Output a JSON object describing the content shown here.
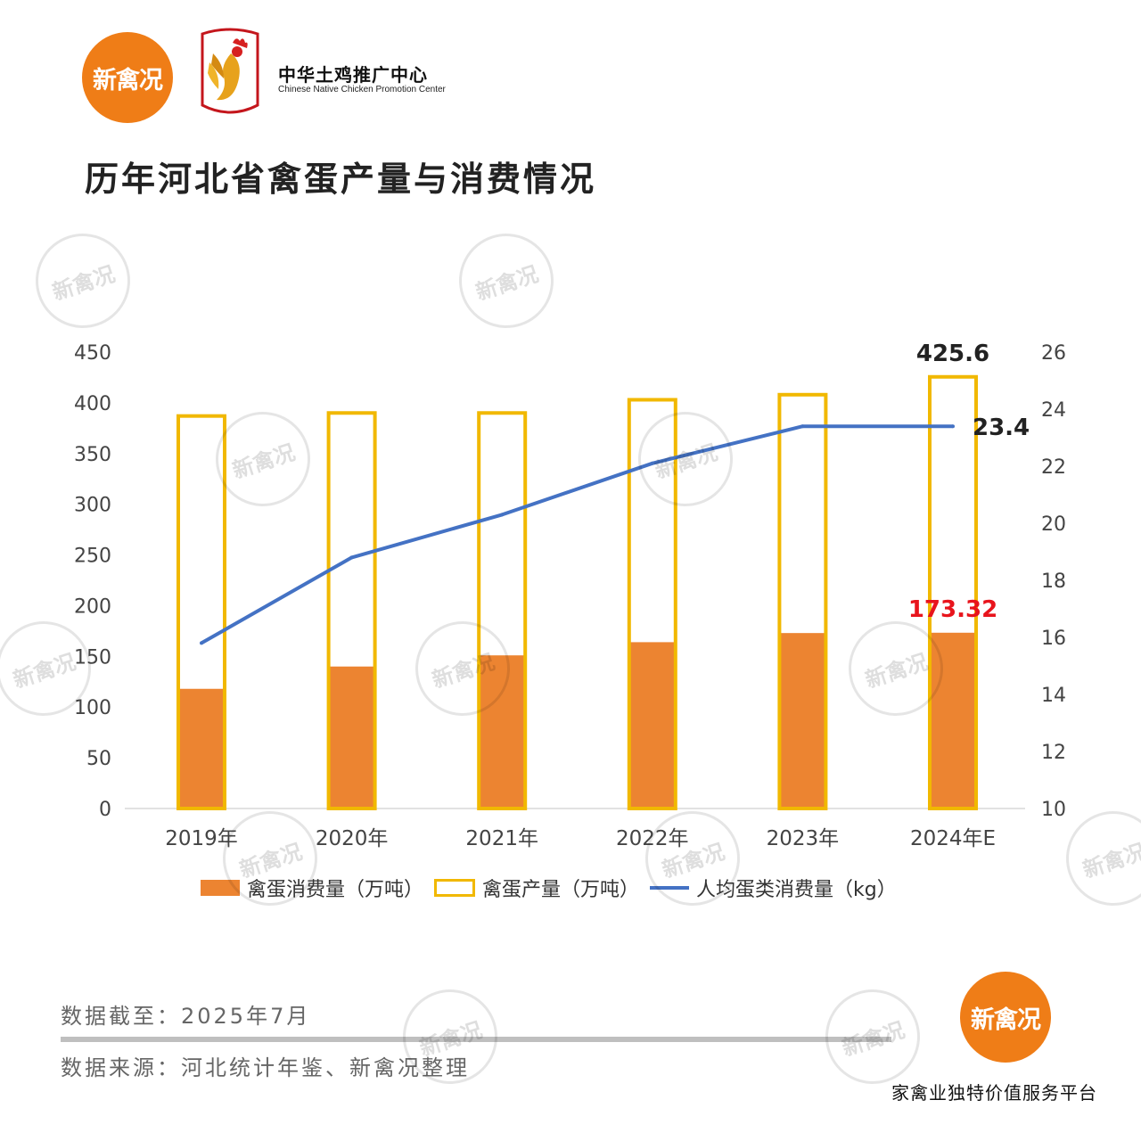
{
  "header": {
    "logo_text": "新禽况",
    "brand_cn": "中华土鸡推广中心",
    "brand_en": "Chinese Native Chicken Promotion Center",
    "title": "历年河北省禽蛋产量与消费情况"
  },
  "chart_data": {
    "type": "bar",
    "title": "历年河北省禽蛋产量与消费情况",
    "categories": [
      "2019年",
      "2020年",
      "2021年",
      "2022年",
      "2023年",
      "2024年E"
    ],
    "series": [
      {
        "name": "禽蛋消费量（万吨）",
        "type": "bar",
        "style": "filled",
        "axis": "left",
        "color": "#ec8431",
        "values": [
          118,
          140,
          151,
          164,
          173,
          173.32
        ]
      },
      {
        "name": "禽蛋产量（万吨）",
        "type": "bar",
        "style": "outline",
        "axis": "left",
        "color": "#f1b800",
        "values": [
          387,
          390,
          390,
          403,
          408,
          425.6
        ]
      },
      {
        "name": "人均蛋类消费量（kg）",
        "type": "line",
        "axis": "right",
        "color": "#4472c4",
        "values": [
          15.8,
          18.8,
          20.3,
          22.1,
          23.4,
          23.4
        ]
      }
    ],
    "left_axis": {
      "min": 0,
      "max": 450,
      "ticks": [
        "0",
        "50",
        "100",
        "150",
        "200",
        "250",
        "300",
        "350",
        "400",
        "450"
      ]
    },
    "right_axis": {
      "min": 10,
      "max": 26,
      "ticks": [
        "10",
        "12",
        "14",
        "16",
        "18",
        "20",
        "22",
        "24",
        "26"
      ]
    },
    "annotations": {
      "production_last": "425.6",
      "consumption_last": "173.32",
      "per_capita_last": "23.4"
    },
    "legend_position": "bottom"
  },
  "legend": {
    "consumption": "禽蛋消费量（万吨）",
    "production": "禽蛋产量（万吨）",
    "per_capita": "人均蛋类消费量（kg）"
  },
  "footer": {
    "date": "数据截至：2025年7月",
    "source": "数据来源：河北统计年鉴、新禽况整理",
    "logo_text": "新禽况",
    "platform": "家禽业独特价值服务平台"
  },
  "watermark_text": "新禽况",
  "colors": {
    "brand_orange": "#ef7d17",
    "bar_fill": "#ec8431",
    "bar_outline": "#f1b800",
    "line": "#4472c4",
    "highlight": "#e8141c"
  }
}
